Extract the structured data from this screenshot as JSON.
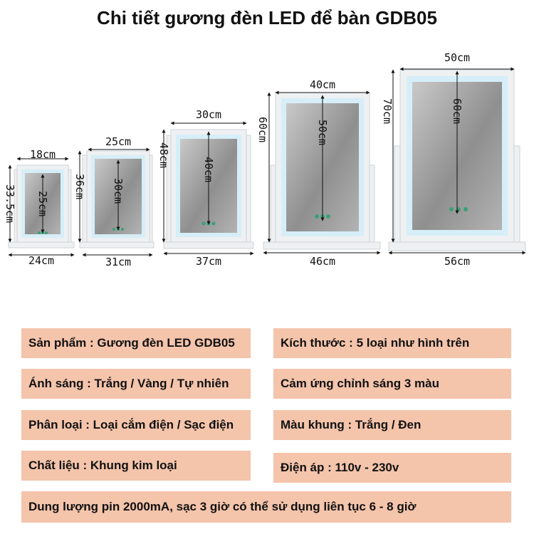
{
  "title": "Chi tiết gương đèn LED để bàn GDB05",
  "mirrors": [
    {
      "top_width": "18cm",
      "height": "33.5cm",
      "inner_height": "25cm",
      "base_width": "24cm"
    },
    {
      "top_width": "25cm",
      "height": "36cm",
      "inner_height": "30cm",
      "base_width": "31cm"
    },
    {
      "top_width": "30cm",
      "height": "48cm",
      "inner_height": "40cm",
      "base_width": "37cm"
    },
    {
      "top_width": "40cm",
      "height": "60cm",
      "inner_height": "50cm",
      "base_width": "46cm"
    },
    {
      "top_width": "50cm",
      "height": "70cm",
      "inner_height": "60cm",
      "base_width": "56cm"
    }
  ],
  "specs": {
    "product": "Sản phẩm : Gương đèn LED GDB05",
    "size": "Kích thước : 5 loại như hình trên",
    "light": "Ánh sáng : Trắng / Vàng / Tự nhiên",
    "touch": "Cảm ứng chỉnh sáng 3 màu",
    "type": "Phân loại : Loại cắm điện / Sạc điện",
    "frame_color": "Màu khung : Trắng / Đen",
    "material": "Chất liệu : Khung kim loại",
    "voltage": "Điện áp : 110v - 230v",
    "battery": "Dung lượng pin 2000mA, sạc 3 giờ có thể sử dụng liên tục 6 - 8 giờ"
  },
  "colors": {
    "panel": "#f4c4ab",
    "frame": "#e9ecef",
    "led": "#d6eef8",
    "glass": "#9a9a9a"
  }
}
